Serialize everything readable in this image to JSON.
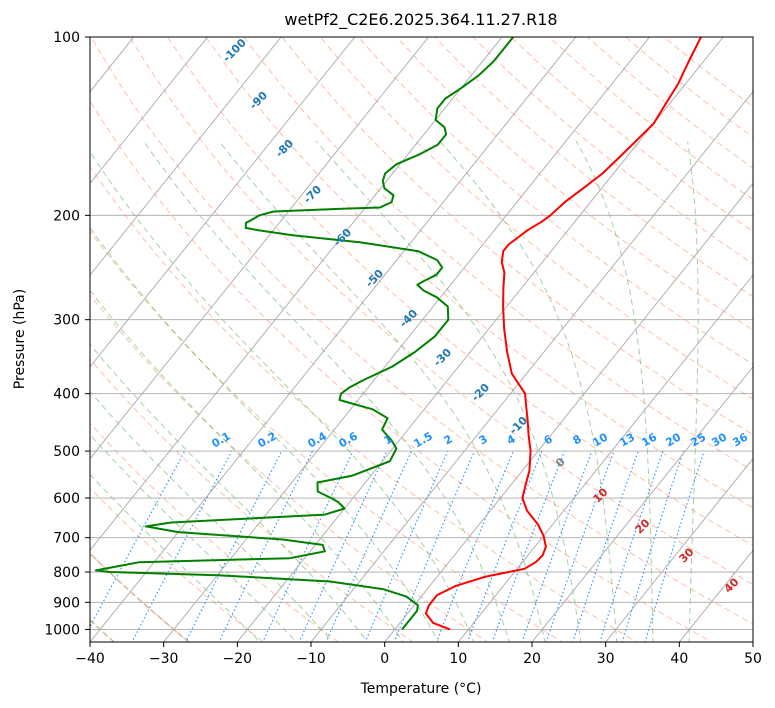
{
  "chart_data": {
    "type": "line",
    "title": "wetPf2_C2E6.2025.364.11.27.R18",
    "xlabel": "Temperature (°C)",
    "ylabel": "Pressure (hPa)",
    "xlim": [
      -40,
      50
    ],
    "ylim": [
      1050,
      100
    ],
    "y_scale": "log",
    "skew": "skew-T log-P",
    "grid": true,
    "x_ticks": [
      -40,
      -30,
      -20,
      -10,
      0,
      10,
      20,
      30,
      40,
      50
    ],
    "y_ticks": [
      100,
      200,
      300,
      400,
      500,
      600,
      700,
      800,
      900,
      1000
    ],
    "series": [
      {
        "color": "#ff0000",
        "points": [
          [
            7.5,
            1000
          ],
          [
            4.5,
            975
          ],
          [
            2.5,
            940
          ],
          [
            2.0,
            910
          ],
          [
            2.0,
            875
          ],
          [
            3.5,
            845
          ],
          [
            6.5,
            815
          ],
          [
            11.0,
            790
          ],
          [
            11.8,
            770
          ],
          [
            12.0,
            750
          ],
          [
            11.5,
            725
          ],
          [
            10.0,
            695
          ],
          [
            8.0,
            665
          ],
          [
            5.0,
            630
          ],
          [
            3.0,
            600
          ],
          [
            2.0,
            570
          ],
          [
            1.0,
            540
          ],
          [
            -1.0,
            500
          ],
          [
            -3.0,
            470
          ],
          [
            -5.0,
            440
          ],
          [
            -6.5,
            420
          ],
          [
            -8.0,
            400
          ],
          [
            -12.0,
            370
          ],
          [
            -15.0,
            340
          ],
          [
            -18.0,
            310
          ],
          [
            -20.5,
            285
          ],
          [
            -22.5,
            265
          ],
          [
            -24.0,
            250
          ],
          [
            -25.5,
            240
          ],
          [
            -26.5,
            230
          ],
          [
            -26.5,
            224
          ],
          [
            -26.0,
            218
          ],
          [
            -25.5,
            212
          ],
          [
            -24.5,
            205
          ],
          [
            -24.0,
            200
          ],
          [
            -23.5,
            190
          ],
          [
            -22.5,
            180
          ],
          [
            -21.5,
            170
          ],
          [
            -21.0,
            160
          ],
          [
            -20.5,
            150
          ],
          [
            -20.0,
            140
          ],
          [
            -20.5,
            130
          ],
          [
            -21.0,
            120
          ],
          [
            -22.0,
            110
          ],
          [
            -23.0,
            100
          ]
        ]
      },
      {
        "color": "#008000",
        "points": [
          [
            1.0,
            1000
          ],
          [
            1.0,
            975
          ],
          [
            1.0,
            950
          ],
          [
            1.0,
            930
          ],
          [
            0.5,
            910
          ],
          [
            -2.0,
            880
          ],
          [
            -6.0,
            855
          ],
          [
            -14.0,
            830
          ],
          [
            -30.0,
            810
          ],
          [
            -45.0,
            800
          ],
          [
            -47.0,
            795
          ],
          [
            -44.0,
            780
          ],
          [
            -42.0,
            770
          ],
          [
            -22.0,
            758
          ],
          [
            -18.0,
            738
          ],
          [
            -19.0,
            720
          ],
          [
            -25.0,
            705
          ],
          [
            -40.0,
            685
          ],
          [
            -45.0,
            670
          ],
          [
            -42.0,
            660
          ],
          [
            -22.0,
            640
          ],
          [
            -20.0,
            625
          ],
          [
            -21.5,
            610
          ],
          [
            -23.0,
            600
          ],
          [
            -25.5,
            585
          ],
          [
            -26.5,
            565
          ],
          [
            -22.5,
            550
          ],
          [
            -19.0,
            520
          ],
          [
            -19.5,
            495
          ],
          [
            -21.0,
            480
          ],
          [
            -23.5,
            460
          ],
          [
            -24.0,
            440
          ],
          [
            -27.0,
            425
          ],
          [
            -32.5,
            410
          ],
          [
            -33.0,
            400
          ],
          [
            -32.5,
            390
          ],
          [
            -31.5,
            380
          ],
          [
            -29.0,
            360
          ],
          [
            -27.5,
            340
          ],
          [
            -26.5,
            320
          ],
          [
            -26.5,
            300
          ],
          [
            -28.0,
            285
          ],
          [
            -30.5,
            275
          ],
          [
            -33.0,
            268
          ],
          [
            -34.5,
            262
          ],
          [
            -34.0,
            258
          ],
          [
            -33.0,
            252
          ],
          [
            -33.0,
            245
          ],
          [
            -34.5,
            238
          ],
          [
            -38.0,
            230
          ],
          [
            -47.0,
            222
          ],
          [
            -57.0,
            216
          ],
          [
            -62.0,
            212
          ],
          [
            -64.0,
            210
          ],
          [
            -64.5,
            206
          ],
          [
            -64.0,
            203
          ],
          [
            -63.5,
            200
          ],
          [
            -62.0,
            197
          ],
          [
            -53.0,
            195
          ],
          [
            -48.0,
            194
          ],
          [
            -47.0,
            190
          ],
          [
            -47.5,
            185
          ],
          [
            -49.5,
            180
          ],
          [
            -50.5,
            175
          ],
          [
            -51.0,
            170
          ],
          [
            -50.5,
            164
          ],
          [
            -48.5,
            158
          ],
          [
            -47.0,
            152
          ],
          [
            -47.0,
            146
          ],
          [
            -48.0,
            142
          ],
          [
            -50.0,
            138
          ],
          [
            -51.0,
            132
          ],
          [
            -51.0,
            127
          ],
          [
            -50.0,
            122
          ],
          [
            -49.0,
            116
          ],
          [
            -48.5,
            110
          ],
          [
            -48.5,
            105
          ],
          [
            -48.5,
            100
          ]
        ]
      }
    ],
    "dry_adiabats_labels": [
      "-100",
      "-90",
      "-80",
      "-70",
      "-60",
      "-50",
      "-40",
      "-30",
      "-20",
      "-10"
    ],
    "moist_adiabat_labels": [
      "0",
      "10",
      "20",
      "30",
      "40"
    ],
    "mixing_ratio_labels": [
      "0.1",
      "0.2",
      "0.4",
      "0.6",
      "1",
      "1.5",
      "2",
      "3",
      "4",
      "6",
      "8",
      "10",
      "13",
      "16",
      "20",
      "25",
      "30",
      "36"
    ],
    "colors": {
      "temperature": "#ff0000",
      "dewpoint": "#008000",
      "isotherm": "#a9a9a9",
      "dry_adiabat": "#ff7f50",
      "moist_adiabat": "#2ca02c",
      "mixing_ratio": "#1e90ff",
      "dry_label": "#1f77b4",
      "moist_label_red": "#d62728",
      "moist_label_gray": "#808080",
      "tan_curve": "#d2b48c"
    }
  }
}
